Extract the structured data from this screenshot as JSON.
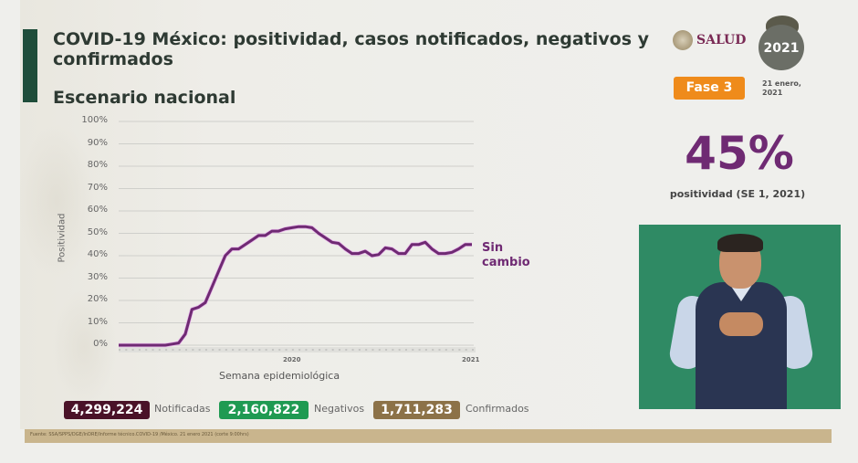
{
  "header": {
    "title": "COVID-19 México: positividad, casos notificados, negativos y confirmados",
    "subtitle": "Escenario nacional"
  },
  "branding": {
    "salud_label": "SALUD",
    "logo_year": "2021",
    "phase_badge": "Fase 3",
    "date_line1": "21 enero,",
    "date_line2": "2021"
  },
  "kpi": {
    "value": "45%",
    "label": "positividad (SE 1, 2021)"
  },
  "stats": [
    {
      "value": "4,299,224",
      "label": "Notificadas",
      "color": "#4a1228"
    },
    {
      "value": "2,160,822",
      "label": "Negativos",
      "color": "#1f9a52"
    },
    {
      "value": "1,711,283",
      "label": "Confirmados",
      "color": "#8c7248"
    }
  ],
  "annotation": {
    "line1": "Sin",
    "line2": "cambio"
  },
  "footer": {
    "source": "Fuente: SSA/SPPS/DGE/InDRE/Informe técnico.COVID-19 /México. 21 enero 2021 (corte 9:00hrs)"
  },
  "colors": {
    "line": "#6f2a73",
    "title_bar": "#1f4d3a",
    "phase": "#ef8b1b",
    "footer": "#c9b58d"
  },
  "chart_data": {
    "type": "line",
    "title": "Escenario nacional",
    "xlabel": "Semana epidemiológica",
    "ylabel": "Positividad",
    "ylim": [
      0,
      100
    ],
    "yticks": [
      "0%",
      "10%",
      "20%",
      "30%",
      "40%",
      "50%",
      "60%",
      "70%",
      "80%",
      "90%",
      "100%"
    ],
    "grid": true,
    "x_year_labels": [
      {
        "label": "2020",
        "position": 0.5
      },
      {
        "label": "2021",
        "position": 1.0
      }
    ],
    "series": [
      {
        "name": "Positividad",
        "x": [
          1,
          2,
          3,
          4,
          5,
          6,
          7,
          8,
          9,
          10,
          11,
          12,
          13,
          14,
          15,
          16,
          17,
          18,
          19,
          20,
          21,
          22,
          23,
          24,
          25,
          26,
          27,
          28,
          29,
          30,
          31,
          32,
          33,
          34,
          35,
          36,
          37,
          38,
          39,
          40,
          41,
          42,
          43,
          44,
          45,
          46,
          47,
          48,
          49,
          50,
          51,
          52,
          53,
          54
        ],
        "values": [
          0,
          0,
          0,
          0,
          0,
          0,
          0,
          0,
          0.5,
          1,
          5,
          16,
          17,
          19,
          26,
          33,
          40,
          43,
          43,
          45,
          47,
          49,
          49,
          51,
          51,
          52,
          52.5,
          53,
          53,
          52.5,
          50,
          48,
          46,
          45.5,
          43,
          41,
          41,
          42,
          40,
          40.5,
          43.5,
          43,
          41,
          41,
          45,
          45,
          46,
          43,
          41,
          41,
          41.5,
          43,
          45,
          45
        ]
      }
    ],
    "annotation": "Sin cambio"
  }
}
